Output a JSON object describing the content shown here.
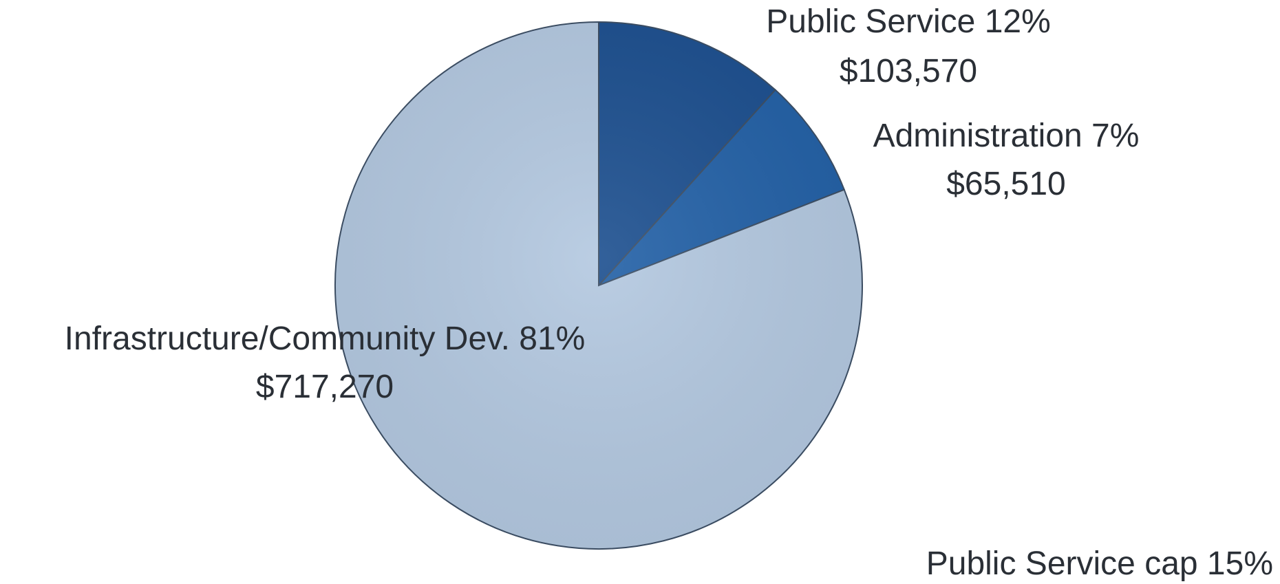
{
  "chart_data": {
    "type": "pie",
    "title": "",
    "slices": [
      {
        "label": "Public Service 12%",
        "percent": 12,
        "value": 103570,
        "value_text": "$103,570",
        "color": "#1c4f8f"
      },
      {
        "label": "Administration 7%",
        "percent": 7,
        "value": 65510,
        "value_text": "$65,510",
        "color": "#2260a6"
      },
      {
        "label": "Infrastructure/Community Dev.  81%",
        "percent": 81,
        "value": 717270,
        "value_text": "$717,270",
        "color": "#b3c8e0"
      }
    ],
    "annotation": "Public Service cap 15%"
  }
}
